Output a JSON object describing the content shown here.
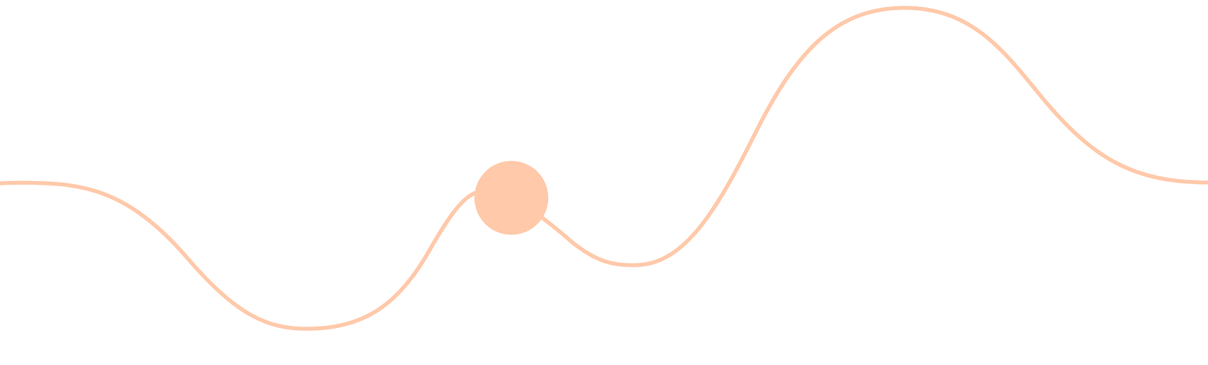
{
  "colors": {
    "background": "#ffffff",
    "accent": "#ffc9aa"
  },
  "wave": {
    "shape": "smooth-wave-line",
    "marker": "circle-handle",
    "marker_progress": 0.4076
  }
}
